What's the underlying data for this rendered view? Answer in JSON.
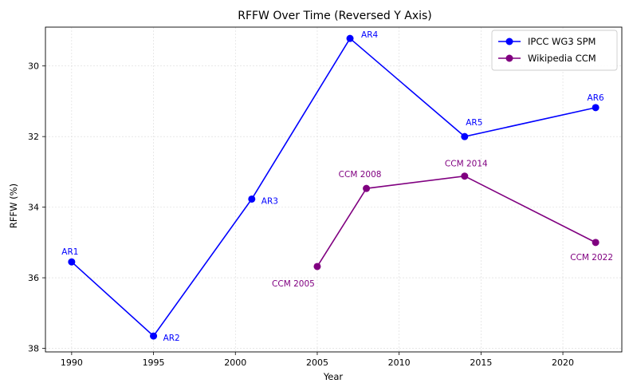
{
  "chart_data": {
    "type": "line",
    "title": "RFFW Over Time (Reversed Y Axis)",
    "xlabel": "Year",
    "ylabel": "RFFW (%)",
    "xlim": [
      1988.4,
      2023.6
    ],
    "ylim": [
      38.1,
      28.9
    ],
    "y_reversed": true,
    "grid": true,
    "legend_position": "top-right",
    "x_ticks": [
      1990,
      1995,
      2000,
      2005,
      2010,
      2015,
      2020
    ],
    "y_ticks": [
      30,
      32,
      34,
      36,
      38
    ],
    "series": [
      {
        "name": "IPCC WG3 SPM",
        "color": "#0000ff",
        "points": [
          {
            "x": 1990,
            "y": 35.55,
            "label": "AR1"
          },
          {
            "x": 1995,
            "y": 37.65,
            "label": "AR2"
          },
          {
            "x": 2001,
            "y": 33.77,
            "label": "AR3"
          },
          {
            "x": 2007,
            "y": 29.22,
            "label": "AR4"
          },
          {
            "x": 2014,
            "y": 32.0,
            "label": "AR5"
          },
          {
            "x": 2022,
            "y": 31.18,
            "label": "AR6"
          }
        ]
      },
      {
        "name": "Wikipedia CCM",
        "color": "#800080",
        "points": [
          {
            "x": 2005,
            "y": 35.68,
            "label": "CCM 2005"
          },
          {
            "x": 2008,
            "y": 33.47,
            "label": "CCM 2008"
          },
          {
            "x": 2014,
            "y": 33.12,
            "label": "CCM 2014"
          },
          {
            "x": 2022,
            "y": 35.0,
            "label": "CCM 2022"
          }
        ]
      }
    ]
  }
}
